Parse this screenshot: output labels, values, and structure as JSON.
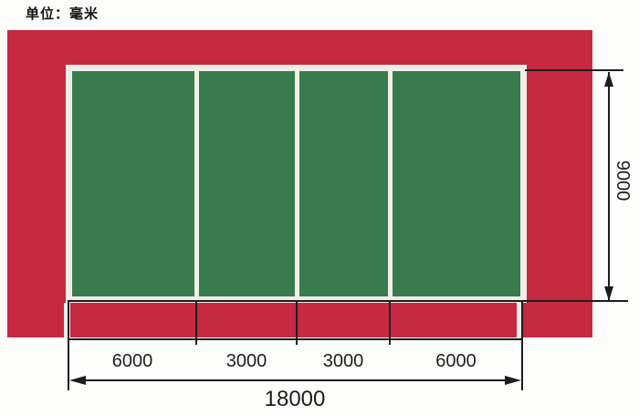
{
  "unit_label": "单位：毫米",
  "dims": {
    "total_width_mm": "18000",
    "court_height_mm": "9000",
    "bottom_segments_mm": [
      "6000",
      "3000",
      "3000",
      "6000"
    ]
  },
  "court": {
    "panel_count": 4
  },
  "colors": {
    "apron_red": "#c52a42",
    "court_green": "#387b4d",
    "court_line_white": "#f0eee7",
    "dimension_line_black": "#1d1d1d",
    "background": "#fdfdfb"
  }
}
